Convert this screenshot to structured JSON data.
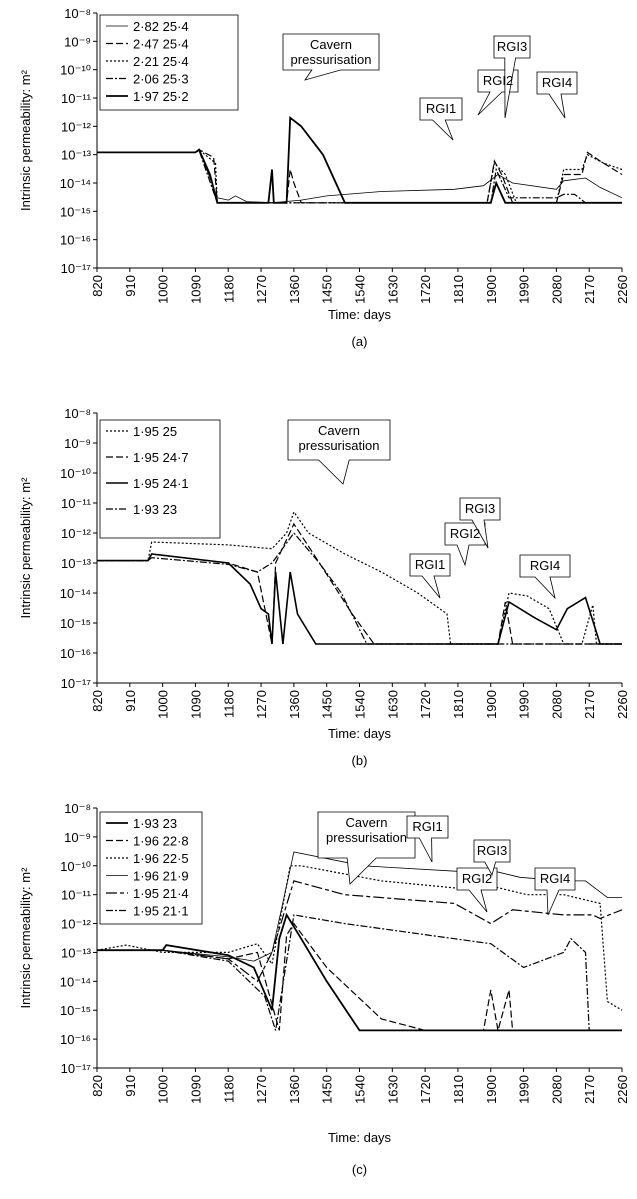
{
  "chart_data": [
    {
      "type": "line",
      "panel_label": "(a)",
      "ylabel": "Intrinsic permeability: m²",
      "xlabel": "Time: days",
      "yscale": "log",
      "annotations": [
        "Cavern pressurisation",
        "RGI1",
        "RGI2",
        "RGI3",
        "RGI4"
      ],
      "xlim": [
        820,
        2260
      ],
      "ylim": [
        1e-17,
        1e-08
      ],
      "xticks": [
        820,
        910,
        1000,
        1090,
        1180,
        1270,
        1360,
        1450,
        1540,
        1630,
        1720,
        1810,
        1900,
        1990,
        2080,
        2170,
        2260
      ],
      "yticks": [
        {
          "value": 1e-17,
          "label": "10⁻¹⁷"
        },
        {
          "value": 1e-16,
          "label": "10⁻¹⁶"
        },
        {
          "value": 1e-15,
          "label": "10⁻¹⁵"
        },
        {
          "value": 1e-14,
          "label": "10⁻¹⁴"
        },
        {
          "value": 1e-13,
          "label": "10⁻¹³"
        },
        {
          "value": 1e-12,
          "label": "10⁻¹²"
        },
        {
          "value": 1e-11,
          "label": "10⁻¹¹"
        },
        {
          "value": 1e-10,
          "label": "10⁻¹⁰"
        },
        {
          "value": 1e-09,
          "label": "10⁻⁹"
        },
        {
          "value": 1e-08,
          "label": "10⁻⁸"
        }
      ],
      "series": [
        {
          "name": "2·82 25·4",
          "color": "#000000",
          "dash": "solid",
          "width": 0.8,
          "x": [
            820,
            1090,
            1100,
            1150,
            1180,
            1200,
            1230,
            1300,
            1380,
            1450,
            1600,
            1800,
            1880,
            1920,
            1960,
            2080,
            2100,
            2160,
            2200,
            2260
          ],
          "values": [
            1.2e-13,
            1.2e-13,
            1.6e-13,
            3e-15,
            2.5e-15,
            3.5e-15,
            2.2e-15,
            2e-15,
            2.5e-15,
            3.5e-15,
            5e-15,
            6e-15,
            8e-15,
            2e-14,
            1e-14,
            6e-15,
            1.2e-14,
            1.5e-14,
            7e-15,
            3e-15
          ]
        },
        {
          "name": "2·47 25·4",
          "color": "#000000",
          "dash": "dash",
          "width": 1.2,
          "x": [
            820,
            1090,
            1100,
            1140,
            1150,
            1340,
            1350,
            1360,
            1380,
            1890,
            1910,
            1930,
            1960,
            2080,
            2100,
            2150,
            2165,
            2200,
            2260
          ],
          "values": [
            1.2e-13,
            1.2e-13,
            1.5e-13,
            8e-14,
            2e-15,
            2e-15,
            3e-14,
            1e-14,
            2e-15,
            2e-15,
            6e-14,
            2e-14,
            2e-15,
            2e-15,
            2e-14,
            2e-14,
            1.2e-13,
            6e-14,
            2e-14
          ]
        },
        {
          "name": "2·21 25·4",
          "color": "#000000",
          "dash": "dot",
          "width": 1.2,
          "x": [
            820,
            1090,
            1100,
            1145,
            1150,
            1890,
            1910,
            1940,
            1970,
            2080,
            2100,
            2150,
            2165,
            2210,
            2260
          ],
          "values": [
            1.2e-13,
            1.2e-13,
            1.5e-13,
            5e-14,
            2e-15,
            2e-15,
            5e-14,
            2e-14,
            2e-15,
            2e-15,
            3e-14,
            3e-14,
            1e-13,
            5e-14,
            3e-14
          ]
        },
        {
          "name": "2·06 25·3",
          "color": "#000000",
          "dash": "dashdot",
          "width": 1.2,
          "x": [
            820,
            1090,
            1100,
            1150,
            1900,
            1915,
            1950,
            2080,
            2100,
            2130,
            2160,
            2260
          ],
          "values": [
            1.2e-13,
            1.2e-13,
            1.4e-13,
            2e-15,
            2e-15,
            3e-14,
            3e-15,
            3e-15,
            4e-15,
            4e-15,
            2e-15,
            2e-15
          ]
        },
        {
          "name": "1·97 25·2",
          "color": "#000000",
          "dash": "solid",
          "width": 1.8,
          "x": [
            820,
            1090,
            1100,
            1130,
            1150,
            1290,
            1300,
            1305,
            1340,
            1350,
            1380,
            1440,
            1500,
            1900,
            1915,
            1940,
            2260
          ],
          "values": [
            1.2e-13,
            1.2e-13,
            1.5e-13,
            2e-14,
            2e-15,
            2e-15,
            3e-14,
            2e-15,
            2e-15,
            2e-12,
            1e-12,
            1e-13,
            2e-15,
            2e-15,
            1e-14,
            2e-15,
            2e-15
          ]
        }
      ]
    },
    {
      "type": "line",
      "panel_label": "(b)",
      "ylabel": "Intrinsic permeability: m²",
      "xlabel": "Time: days",
      "yscale": "log",
      "annotations": [
        "Cavern pressurisation",
        "RGI1",
        "RGI2",
        "RGI3",
        "RGI4"
      ],
      "xlim": [
        820,
        2260
      ],
      "ylim": [
        1e-17,
        1e-08
      ],
      "xticks": [
        820,
        910,
        1000,
        1090,
        1180,
        1270,
        1360,
        1450,
        1540,
        1630,
        1720,
        1810,
        1900,
        1990,
        2080,
        2170,
        2260
      ],
      "yticks": [
        {
          "value": 1e-17,
          "label": "10⁻¹⁷"
        },
        {
          "value": 1e-16,
          "label": "10⁻¹⁶"
        },
        {
          "value": 1e-15,
          "label": "10⁻¹⁵"
        },
        {
          "value": 1e-14,
          "label": "10⁻¹⁴"
        },
        {
          "value": 1e-13,
          "label": "10⁻¹³"
        },
        {
          "value": 1e-12,
          "label": "10⁻¹²"
        },
        {
          "value": 1e-11,
          "label": "10⁻¹¹"
        },
        {
          "value": 1e-10,
          "label": "10⁻¹⁰"
        },
        {
          "value": 1e-09,
          "label": "10⁻⁹"
        },
        {
          "value": 1e-08,
          "label": "10⁻⁸"
        }
      ],
      "series": [
        {
          "name": "1·95 25",
          "color": "#000000",
          "dash": "dot",
          "width": 1.2,
          "x": [
            820,
            960,
            970,
            1180,
            1300,
            1340,
            1360,
            1400,
            1500,
            1600,
            1700,
            1780,
            1790,
            1920,
            1950,
            2000,
            2060,
            2100,
            2150,
            2180,
            2190,
            2260
          ],
          "values": [
            1.2e-13,
            1.2e-13,
            5e-13,
            4e-13,
            3e-13,
            1e-12,
            5e-12,
            1e-12,
            2e-13,
            5e-14,
            1e-14,
            2e-15,
            2e-16,
            2e-16,
            1e-14,
            8e-15,
            3e-15,
            2e-16,
            2e-16,
            4e-15,
            2e-16,
            2e-16
          ]
        },
        {
          "name": "1·95 24·7",
          "color": "#000000",
          "dash": "dash",
          "width": 1.2,
          "x": [
            820,
            960,
            970,
            1180,
            1260,
            1300,
            1310,
            1360,
            1430,
            1520,
            1580,
            1920,
            1940,
            1960,
            2260
          ],
          "values": [
            1.2e-13,
            1.2e-13,
            2e-13,
            1e-13,
            5e-14,
            2e-16,
            1e-13,
            2e-12,
            1e-13,
            2e-15,
            2e-16,
            2e-16,
            5e-15,
            2e-16,
            2e-16
          ]
        },
        {
          "name": "1·95 24·1",
          "color": "#000000",
          "dash": "solid",
          "width": 1.6,
          "x": [
            820,
            960,
            970,
            1180,
            1240,
            1270,
            1290,
            1300,
            1310,
            1330,
            1350,
            1370,
            1420,
            1920,
            1950,
            2020,
            2080,
            2110,
            2160,
            2200,
            2260
          ],
          "values": [
            1.2e-13,
            1.2e-13,
            2e-13,
            1e-13,
            2e-14,
            3e-15,
            2e-15,
            2e-16,
            5e-14,
            2e-16,
            5e-14,
            2e-15,
            2e-16,
            2e-16,
            5e-15,
            1.5e-15,
            6e-16,
            3e-15,
            7e-15,
            2e-16,
            2e-16
          ]
        },
        {
          "name": "1·93 23",
          "color": "#000000",
          "dash": "dashdot",
          "width": 1.2,
          "x": [
            820,
            960,
            970,
            1180,
            1260,
            1300,
            1360,
            1430,
            1490,
            1560,
            2260
          ],
          "values": [
            1.2e-13,
            1.2e-13,
            1.5e-13,
            9e-14,
            5e-14,
            1e-13,
            1e-12,
            1e-13,
            1e-14,
            2e-16,
            2e-16
          ]
        }
      ]
    },
    {
      "type": "line",
      "panel_label": "(c)",
      "ylabel": "Intrinsic permeability: m²",
      "xlabel": "Time: days",
      "yscale": "log",
      "annotations": [
        "Cavern pressurisation",
        "RGI1",
        "RGI2",
        "RGI3",
        "RGI4"
      ],
      "xlim": [
        820,
        2260
      ],
      "ylim": [
        1e-17,
        1e-08
      ],
      "xticks": [
        820,
        910,
        1000,
        1090,
        1180,
        1270,
        1360,
        1450,
        1540,
        1630,
        1720,
        1810,
        1900,
        1990,
        2080,
        2170,
        2260
      ],
      "yticks": [
        {
          "value": 1e-17,
          "label": "10⁻¹⁷"
        },
        {
          "value": 1e-16,
          "label": "10⁻¹⁶"
        },
        {
          "value": 1e-15,
          "label": "10⁻¹⁵"
        },
        {
          "value": 1e-14,
          "label": "10⁻¹⁴"
        },
        {
          "value": 1e-13,
          "label": "10⁻¹³"
        },
        {
          "value": 1e-12,
          "label": "10⁻¹²"
        },
        {
          "value": 1e-11,
          "label": "10⁻¹¹"
        },
        {
          "value": 1e-10,
          "label": "10⁻¹⁰"
        },
        {
          "value": 1e-09,
          "label": "10⁻⁹"
        },
        {
          "value": 1e-08,
          "label": "10⁻⁸"
        }
      ],
      "series": [
        {
          "name": "1·93 23",
          "color": "#000000",
          "dash": "solid",
          "width": 1.8,
          "x": [
            820,
            1000,
            1010,
            1180,
            1250,
            1300,
            1320,
            1340,
            1380,
            1450,
            1540,
            2260
          ],
          "values": [
            1.2e-13,
            1.2e-13,
            1.8e-13,
            8e-14,
            3e-14,
            1e-15,
            3e-13,
            2e-12,
            3e-13,
            1e-14,
            2e-16,
            2e-16
          ]
        },
        {
          "name": "1·96 22·8",
          "color": "#000000",
          "dash": "dash",
          "width": 1.2,
          "x": [
            820,
            1000,
            1180,
            1260,
            1320,
            1340,
            1360,
            1450,
            1600,
            1720,
            1880,
            1900,
            1920,
            1950,
            1960,
            2260
          ],
          "values": [
            1.2e-13,
            1.2e-13,
            6e-14,
            1e-13,
            2e-16,
            4e-13,
            1e-12,
            3e-14,
            5e-16,
            2e-16,
            2e-16,
            5e-15,
            2e-16,
            5e-15,
            2e-16,
            2e-16
          ]
        },
        {
          "name": "1·96 22·5",
          "color": "#000000",
          "dash": "dot",
          "width": 1.2,
          "x": [
            820,
            900,
            1000,
            1180,
            1260,
            1300,
            1350,
            1380,
            1600,
            1850,
            1900,
            2000,
            2100,
            2200,
            2220,
            2260
          ],
          "values": [
            1.2e-13,
            1.8e-13,
            1e-13,
            1e-13,
            2e-13,
            4e-14,
            1e-10,
            1e-10,
            3e-11,
            1.5e-11,
            2e-11,
            1e-11,
            1e-11,
            5e-12,
            2e-15,
            1e-15
          ]
        },
        {
          "name": "1·96 21·9",
          "color": "#000000",
          "dash": "solid",
          "width": 0.8,
          "x": [
            820,
            1000,
            1180,
            1250,
            1300,
            1360,
            1550,
            1850,
            1900,
            1980,
            2100,
            2160,
            2220,
            2260
          ],
          "values": [
            1.2e-13,
            1.2e-13,
            7e-14,
            5e-14,
            1e-13,
            3e-10,
            1e-10,
            6e-11,
            7e-11,
            4e-11,
            3e-11,
            3e-11,
            8e-12,
            8e-12
          ]
        },
        {
          "name": "1·95 21·4",
          "color": "#000000",
          "dash": "longdash",
          "width": 1.2,
          "x": [
            820,
            1000,
            1180,
            1260,
            1300,
            1360,
            1500,
            1800,
            1900,
            1960,
            2100,
            2180,
            2200,
            2260
          ],
          "values": [
            1.2e-13,
            1.2e-13,
            6e-14,
            1e-14,
            1e-13,
            3e-11,
            1e-11,
            5e-12,
            1e-12,
            3e-12,
            2e-12,
            2e-12,
            1.5e-12,
            3e-12
          ]
        },
        {
          "name": "1·95 21·1",
          "color": "#000000",
          "dash": "dashdot",
          "width": 1.2,
          "x": [
            820,
            1000,
            1180,
            1280,
            1310,
            1360,
            1500,
            1800,
            1900,
            1990,
            2100,
            2120,
            2160,
            2170,
            2260
          ],
          "values": [
            1.2e-13,
            1.2e-13,
            5e-14,
            3e-15,
            2e-16,
            2e-12,
            1e-12,
            3e-13,
            2e-13,
            3e-14,
            1e-13,
            3e-13,
            1e-13,
            2e-16,
            2e-16
          ]
        }
      ]
    }
  ]
}
